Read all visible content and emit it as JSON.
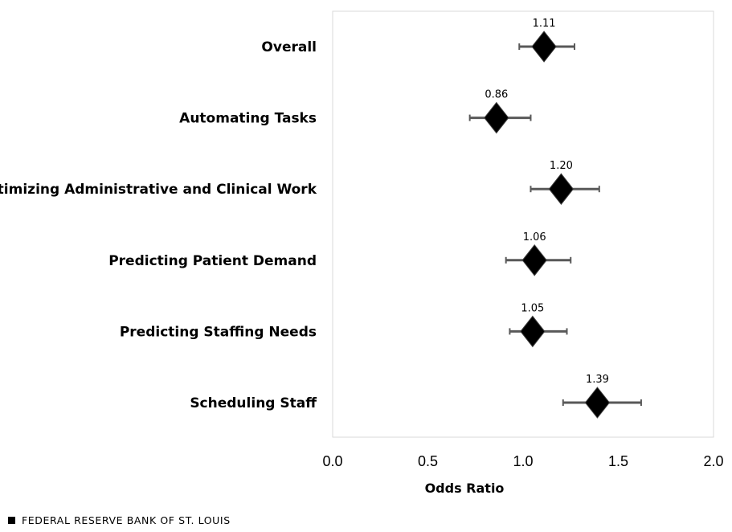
{
  "chart_data": {
    "type": "scatter",
    "categories": [
      "Overall",
      "Automating Tasks",
      "Optimizing Administrative and Clinical Work",
      "Predicting Patient Demand",
      "Predicting Staffing Needs",
      "Scheduling Staff"
    ],
    "values": [
      1.11,
      0.86,
      1.2,
      1.06,
      1.05,
      1.39
    ],
    "value_labels": [
      "1.11",
      "0.86",
      "1.20",
      "1.06",
      "1.05",
      "1.39"
    ],
    "ci_low": [
      0.98,
      0.72,
      1.04,
      0.91,
      0.93,
      1.21
    ],
    "ci_high": [
      1.27,
      1.04,
      1.4,
      1.25,
      1.23,
      1.62
    ],
    "xlabel": "Odds Ratio",
    "ylabel": "",
    "xlim": [
      0.0,
      2.0
    ],
    "x_ticks": [
      "0.0",
      "0.5",
      "1.0",
      "1.5",
      "2.0"
    ],
    "x_tick_values": [
      0.0,
      0.5,
      1.0,
      1.5,
      2.0
    ],
    "marker": "diamond",
    "grid": false,
    "marker_color": "#000000",
    "errorbar_color": "#595959",
    "frame_color": "#d9d9d9"
  },
  "footer": {
    "source": "FEDERAL RESERVE BANK OF ST. LOUIS"
  }
}
